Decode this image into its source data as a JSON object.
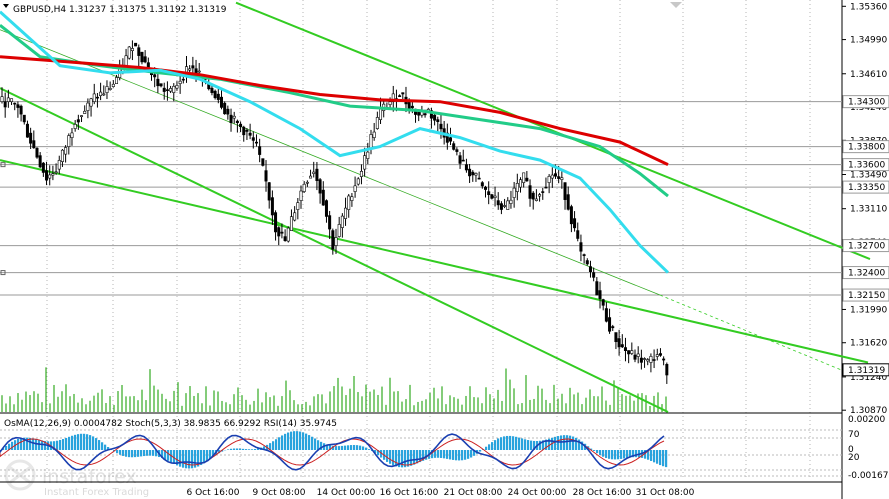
{
  "header": {
    "title": "GBPUSD,H4  1.31237 1.31375 1.31192 1.31319"
  },
  "indicator_label": "OsMA(12,26,9) 0.0004782  Stoch(5,3,3) 38.9835 66.9292  RSI(14) 35.9745",
  "logo": {
    "name": "instaforex",
    "tagline": "Instant Forex Trading"
  },
  "colors": {
    "candle": "#000000",
    "ma_red": "#dd0000",
    "ma_green": "#22cc88",
    "ma_cyan": "#33ddee",
    "channel": "#33cc22",
    "levels": "#9a9a9a",
    "osma": "#29a3dd",
    "stoch_main": "#1a3fb0",
    "stoch_signal": "#cc2222",
    "grid": "#b4b4b4"
  },
  "chart_data": {
    "type": "candlestick",
    "symbol": "GBPUSD",
    "timeframe": "H4",
    "ohlc_last": {
      "open": 1.31237,
      "high": 1.31375,
      "low": 1.31192,
      "close": 1.31319
    },
    "current_price": "1.31319",
    "ylim": [
      1.3085,
      1.3543
    ],
    "y_ticks": [
      "1.35360",
      "1.34990",
      "1.34610",
      "1.34240",
      "1.33870",
      "1.33490",
      "1.33110",
      "1.32740",
      "1.32370",
      "1.31990",
      "1.31620",
      "1.31240",
      "1.30870"
    ],
    "x_ticks": [
      "6 Oct 16:00",
      "9 Oct 08:00",
      "14 Oct 00:00",
      "16 Oct 16:00",
      "21 Oct 08:00",
      "24 Oct 00:00",
      "28 Oct 16:00",
      "31 Oct 08:00"
    ],
    "levels": [
      {
        "value": 1.343,
        "label": "1.34300"
      },
      {
        "value": 1.338,
        "label": "1.33800"
      },
      {
        "value": 1.336,
        "label": "1.33600"
      },
      {
        "value": 1.3335,
        "label": "1.33350"
      },
      {
        "value": 1.327,
        "label": "1.32700"
      },
      {
        "value": 1.324,
        "label": "1.32400"
      },
      {
        "value": 1.3215,
        "label": "1.32150"
      }
    ],
    "close_path": [
      1.343,
      1.3425,
      1.3395,
      1.337,
      1.3345,
      1.3355,
      1.338,
      1.341,
      1.342,
      1.3435,
      1.344,
      1.345,
      1.347,
      1.3495,
      1.348,
      1.346,
      1.3445,
      1.344,
      1.3455,
      1.347,
      1.346,
      1.3445,
      1.3435,
      1.3415,
      1.3405,
      1.3395,
      1.338,
      1.334,
      1.329,
      1.3275,
      1.331,
      1.334,
      1.3355,
      1.332,
      1.327,
      1.33,
      1.333,
      1.3355,
      1.339,
      1.342,
      1.343,
      1.344,
      1.3425,
      1.3415,
      1.342,
      1.3405,
      1.339,
      1.337,
      1.3355,
      1.3345,
      1.333,
      1.332,
      1.331,
      1.333,
      1.3345,
      1.332,
      1.3335,
      1.335,
      1.334,
      1.33,
      1.326,
      1.324,
      1.321,
      1.318,
      1.316,
      1.315,
      1.3145,
      1.314,
      1.315,
      1.3132
    ],
    "ma_red": [
      [
        0,
        1.348
      ],
      [
        60,
        1.3475
      ],
      [
        140,
        1.3468
      ],
      [
        200,
        1.346
      ],
      [
        260,
        1.3448
      ],
      [
        320,
        1.3438
      ],
      [
        380,
        1.3432
      ],
      [
        440,
        1.343
      ],
      [
        500,
        1.3418
      ],
      [
        560,
        1.34
      ],
      [
        620,
        1.3385
      ],
      [
        668,
        1.336
      ]
    ],
    "ma_green": [
      [
        0,
        1.3515
      ],
      [
        40,
        1.348
      ],
      [
        100,
        1.347
      ],
      [
        160,
        1.3462
      ],
      [
        220,
        1.3455
      ],
      [
        290,
        1.344
      ],
      [
        350,
        1.3425
      ],
      [
        420,
        1.342
      ],
      [
        480,
        1.341
      ],
      [
        540,
        1.34
      ],
      [
        600,
        1.338
      ],
      [
        640,
        1.335
      ],
      [
        668,
        1.3325
      ]
    ],
    "ma_cyan": [
      [
        0,
        1.353
      ],
      [
        30,
        1.35
      ],
      [
        60,
        1.347
      ],
      [
        110,
        1.3462
      ],
      [
        160,
        1.3465
      ],
      [
        200,
        1.3455
      ],
      [
        250,
        1.343
      ],
      [
        300,
        1.34
      ],
      [
        340,
        1.337
      ],
      [
        380,
        1.338
      ],
      [
        420,
        1.34
      ],
      [
        460,
        1.339
      ],
      [
        500,
        1.3375
      ],
      [
        540,
        1.3365
      ],
      [
        580,
        1.3345
      ],
      [
        610,
        1.331
      ],
      [
        640,
        1.327
      ],
      [
        668,
        1.324
      ]
    ],
    "channel_lines": [
      {
        "p1": [
          236,
          1.354
        ],
        "p2": [
          870,
          1.3255
        ]
      },
      {
        "p1": [
          0,
          1.3445
        ],
        "p2": [
          668,
          1.3085
        ]
      },
      {
        "p1": [
          0,
          1.3365
        ],
        "p2": [
          868,
          1.314
        ]
      }
    ],
    "volume_note": "tick volume bars"
  }
}
